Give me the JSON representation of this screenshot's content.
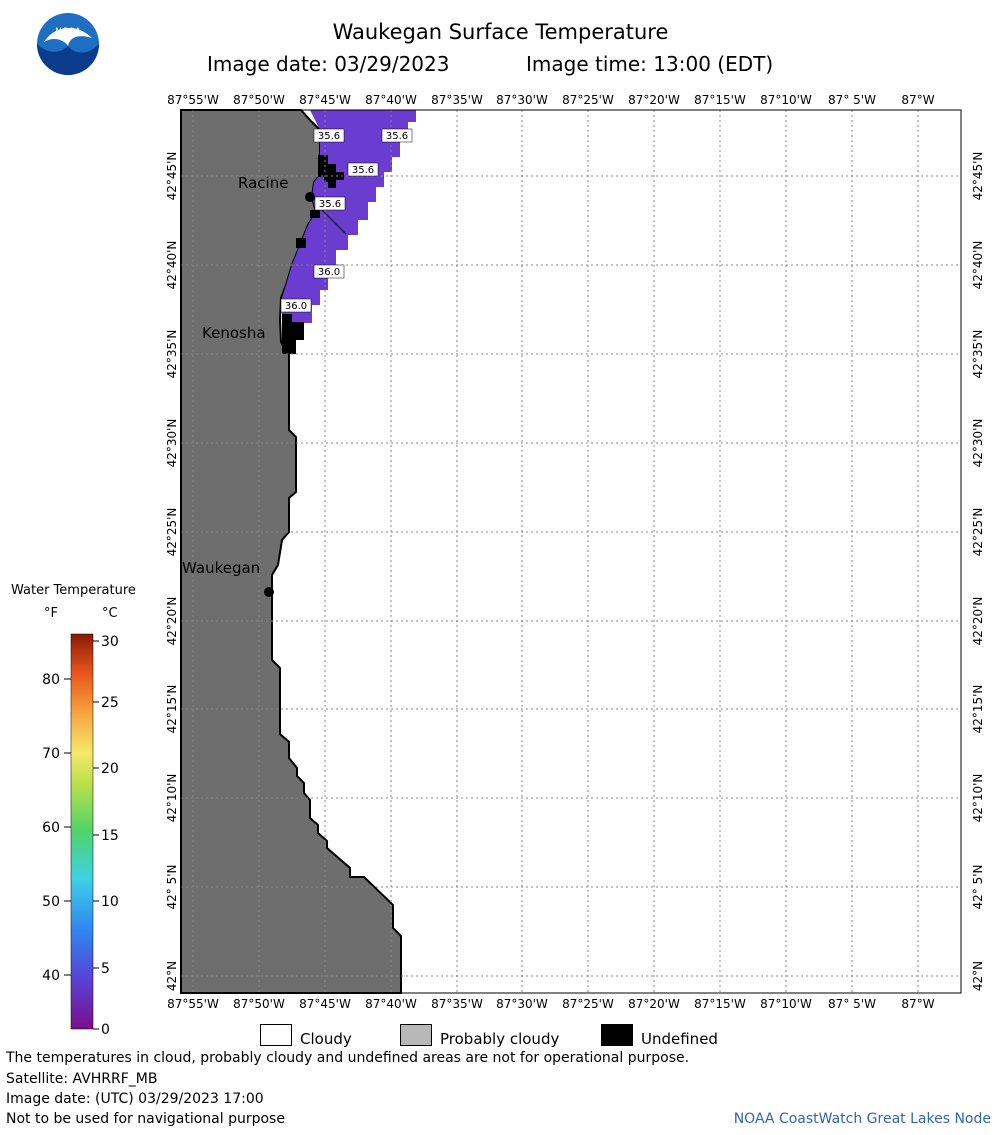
{
  "header": {
    "title": "Waukegan Surface Temperature",
    "image_date": "Image date: 03/29/2023",
    "image_time": "Image time: 13:00 (EDT)",
    "logo_text": "NOAA"
  },
  "map": {
    "lon_labels": [
      "87°55'W",
      "87°50'W",
      "87°45'W",
      "87°40'W",
      "87°35'W",
      "87°30'W",
      "87°25'W",
      "87°20'W",
      "87°15'W",
      "87°10'W",
      "87° 5'W",
      "87°W"
    ],
    "lat_labels": [
      "42°45'N",
      "42°40'N",
      "42°35'N",
      "42°30'N",
      "42°25'N",
      "42°20'N",
      "42°15'N",
      "42°10'N",
      "42° 5'N",
      "42°N"
    ],
    "cities": [
      "Racine",
      "Kenosha",
      "Waukegan"
    ],
    "temp_labels": [
      "35.6",
      "35.6",
      "35.6",
      "35.6",
      "36.0",
      "36.0"
    ],
    "colors": {
      "land": "#6e6e6e",
      "water_temp": "#6a3cd0",
      "undefined": "#000000",
      "grid": "#888888"
    }
  },
  "scale": {
    "title": "Water Temperature",
    "unit_f": "°F",
    "unit_c": "°C",
    "f_ticks": [
      "80",
      "70",
      "60",
      "50",
      "40"
    ],
    "c_ticks": [
      "30",
      "25",
      "20",
      "15",
      "10",
      "5",
      "0"
    ]
  },
  "legend": {
    "cloudy": "Cloudy",
    "probably_cloudy": "Probably cloudy",
    "undefined": "Undefined"
  },
  "footer": {
    "note": "The temperatures in cloud, probably cloudy and undefined areas are not for operational purpose.",
    "satellite": "Satellite: AVHRRF_MB",
    "utc_date": "Image date: (UTC) 03/29/2023  17:00",
    "nav_warning": "Not to be used for navigational purpose",
    "credit": "NOAA CoastWatch Great Lakes Node"
  }
}
